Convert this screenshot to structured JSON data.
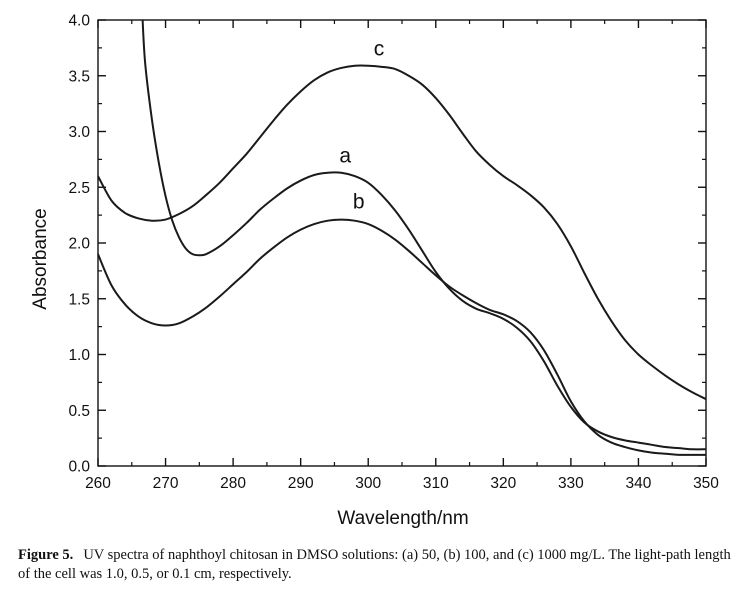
{
  "chart_data": {
    "type": "line",
    "xlabel": "Wavelength/nm",
    "ylabel": "Absorbance",
    "xlim": [
      260,
      350
    ],
    "ylim": [
      0.0,
      4.0
    ],
    "x_ticks": [
      260,
      270,
      280,
      290,
      300,
      310,
      320,
      330,
      340,
      350
    ],
    "y_ticks": [
      "0.0",
      "0.5",
      "1.0",
      "1.5",
      "2.0",
      "2.5",
      "3.0",
      "3.5",
      "4.0"
    ],
    "grid": false,
    "series": [
      {
        "name": "a",
        "x": [
          266.6,
          267,
          268,
          269,
          270,
          271,
          272,
          273,
          274,
          275,
          276,
          278,
          280,
          282,
          284,
          286,
          288,
          290,
          292,
          294,
          296,
          298,
          300,
          302,
          304,
          306,
          308,
          310,
          312,
          314,
          316,
          318,
          320,
          322,
          324,
          326,
          328,
          330,
          332,
          334,
          336,
          338,
          340,
          342,
          344,
          346,
          348,
          350
        ],
        "y": [
          4.0,
          3.6,
          3.1,
          2.72,
          2.42,
          2.2,
          2.05,
          1.95,
          1.9,
          1.89,
          1.9,
          1.97,
          2.07,
          2.18,
          2.3,
          2.4,
          2.49,
          2.56,
          2.61,
          2.63,
          2.63,
          2.6,
          2.54,
          2.43,
          2.29,
          2.12,
          1.93,
          1.74,
          1.59,
          1.48,
          1.41,
          1.37,
          1.32,
          1.24,
          1.12,
          0.94,
          0.72,
          0.53,
          0.39,
          0.31,
          0.26,
          0.23,
          0.21,
          0.19,
          0.17,
          0.16,
          0.15,
          0.15
        ]
      },
      {
        "name": "b",
        "x": [
          260,
          262,
          264,
          266,
          268,
          270,
          272,
          274,
          276,
          278,
          280,
          282,
          284,
          286,
          288,
          290,
          292,
          294,
          296,
          298,
          300,
          302,
          304,
          306,
          308,
          310,
          312,
          314,
          316,
          318,
          320,
          322,
          324,
          326,
          328,
          330,
          332,
          334,
          336,
          338,
          340,
          342,
          344,
          346,
          348,
          350
        ],
        "y": [
          1.9,
          1.62,
          1.45,
          1.34,
          1.28,
          1.26,
          1.28,
          1.34,
          1.42,
          1.52,
          1.63,
          1.74,
          1.86,
          1.96,
          2.05,
          2.12,
          2.17,
          2.2,
          2.21,
          2.2,
          2.17,
          2.11,
          2.03,
          1.93,
          1.82,
          1.71,
          1.61,
          1.53,
          1.46,
          1.4,
          1.36,
          1.3,
          1.2,
          1.04,
          0.82,
          0.58,
          0.4,
          0.28,
          0.21,
          0.17,
          0.14,
          0.12,
          0.11,
          0.1,
          0.1,
          0.1
        ]
      },
      {
        "name": "c",
        "x": [
          260,
          262,
          264,
          266,
          268,
          270,
          272,
          274,
          276,
          278,
          280,
          282,
          284,
          286,
          288,
          290,
          292,
          294,
          296,
          298,
          300,
          302,
          304,
          306,
          308,
          310,
          312,
          314,
          316,
          318,
          320,
          322,
          324,
          326,
          328,
          330,
          332,
          334,
          336,
          338,
          340,
          342,
          344,
          346,
          348,
          350
        ],
        "y": [
          2.6,
          2.38,
          2.27,
          2.22,
          2.2,
          2.21,
          2.26,
          2.33,
          2.43,
          2.54,
          2.67,
          2.8,
          2.95,
          3.1,
          3.24,
          3.36,
          3.46,
          3.53,
          3.57,
          3.59,
          3.59,
          3.58,
          3.56,
          3.5,
          3.42,
          3.3,
          3.15,
          2.98,
          2.82,
          2.7,
          2.6,
          2.52,
          2.43,
          2.32,
          2.17,
          1.97,
          1.73,
          1.5,
          1.3,
          1.13,
          1.0,
          0.9,
          0.81,
          0.73,
          0.66,
          0.6
        ]
      }
    ],
    "annotations": [
      {
        "text": "a",
        "x": 296.6,
        "y": 2.72
      },
      {
        "text": "b",
        "x": 298.6,
        "y": 2.31
      },
      {
        "text": "c",
        "x": 301.6,
        "y": 3.68
      }
    ]
  },
  "caption": {
    "label": "Figure 5.",
    "text": "UV spectra of naphthoyl chitosan in DMSO solutions: (a) 50, (b) 100, and (c) 1000 mg/L. The light-path length of the cell was 1.0, 0.5, or 0.1 cm, respectively."
  }
}
